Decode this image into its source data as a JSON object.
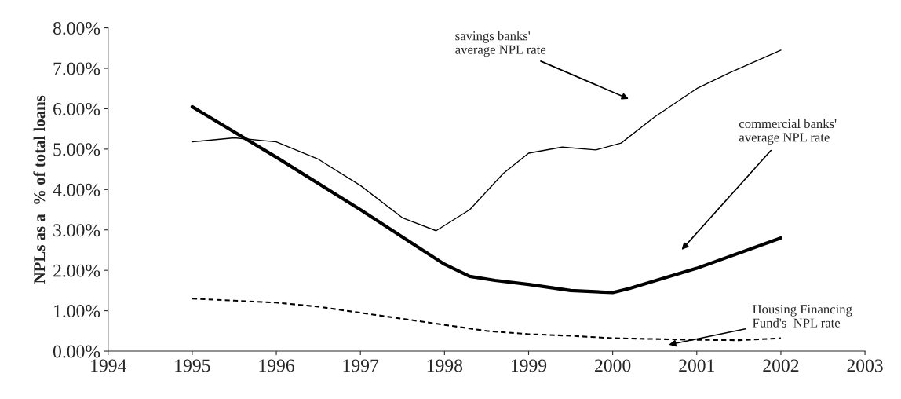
{
  "chart_data": {
    "type": "line",
    "ylabel": "NPLs as a  % of total loans",
    "xlim": [
      1994,
      2003
    ],
    "xticks": [
      1994,
      1995,
      1996,
      1997,
      1998,
      1999,
      2000,
      2001,
      2002,
      2003
    ],
    "ylim": [
      0,
      8
    ],
    "yticks": [
      {
        "value": 0,
        "label": "0.00%"
      },
      {
        "value": 1,
        "label": "1.00%"
      },
      {
        "value": 2,
        "label": "2.00%"
      },
      {
        "value": 3,
        "label": "3.00%"
      },
      {
        "value": 4,
        "label": "4.00%"
      },
      {
        "value": 5,
        "label": "5.00%"
      },
      {
        "value": 6,
        "label": "6.00%"
      },
      {
        "value": 7,
        "label": "7.00%"
      },
      {
        "value": 8,
        "label": "8.00%"
      }
    ],
    "grid": false,
    "legend": false,
    "marker": "none",
    "series": [
      {
        "color": "#000000",
        "line_style": "solid",
        "x": [
          1995,
          1995.5,
          1996,
          1996.5,
          1997,
          1997.5,
          1997.9,
          1998.3,
          1998.7,
          1999,
          1999.4,
          1999.8,
          2000.1,
          2000.5,
          2001,
          2001.4,
          2002
        ],
        "values": [
          5.18,
          5.28,
          5.18,
          4.75,
          4.1,
          3.3,
          2.98,
          3.5,
          4.4,
          4.9,
          5.05,
          4.98,
          5.15,
          5.8,
          6.5,
          6.9,
          7.45
        ]
      },
      {
        "color": "#000000",
        "line_style": "solid",
        "x": [
          1995,
          1996,
          1997,
          1998,
          1998.3,
          1998.6,
          1999,
          1999.5,
          2000,
          2000.2,
          2001,
          2002
        ],
        "values": [
          6.05,
          4.8,
          3.5,
          2.15,
          1.85,
          1.75,
          1.65,
          1.5,
          1.45,
          1.55,
          2.05,
          2.8
        ]
      },
      {
        "color": "#000000",
        "line_style": "dashed",
        "x": [
          1995,
          1995.5,
          1996,
          1996.5,
          1997,
          1998,
          1998.5,
          1999,
          1999.5,
          2000,
          2000.5,
          2001,
          2001.5,
          2002
        ],
        "values": [
          1.3,
          1.25,
          1.2,
          1.1,
          0.95,
          0.65,
          0.5,
          0.42,
          0.38,
          0.32,
          0.3,
          0.28,
          0.27,
          0.32
        ]
      }
    ],
    "annotations": [
      "savings banks'\naverage NPL rate",
      "commercial banks'\naverage NPL rate",
      "Housing Financing\nFund's  NPL rate"
    ]
  }
}
